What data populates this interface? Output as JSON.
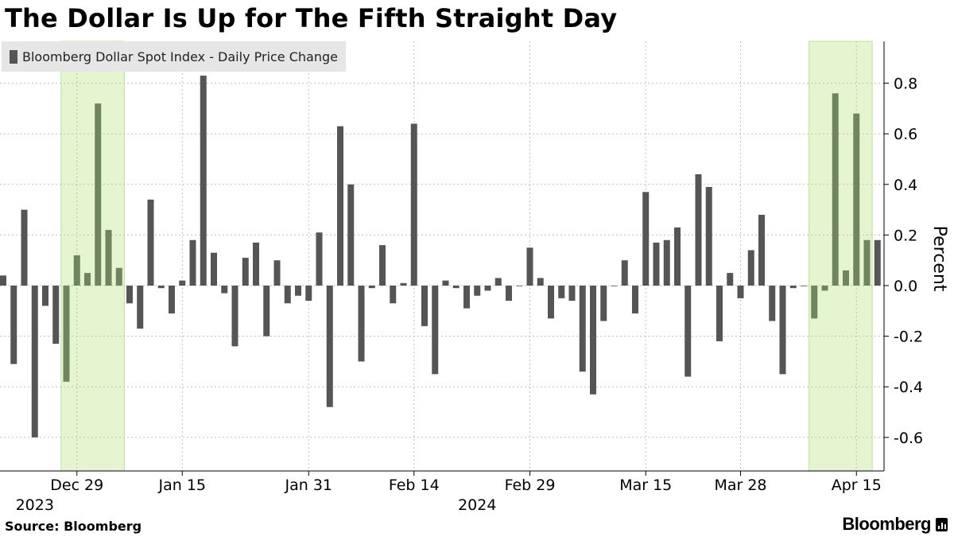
{
  "title": "The Dollar Is Up for The Fifth Straight Day",
  "legend": {
    "label": "Bloomberg Dollar Spot Index - Daily Price Change"
  },
  "source": "Source: Bloomberg",
  "brand": "Bloomberg",
  "colors": {
    "bar": "#555555",
    "highlight_fill": "#e5f5cf",
    "highlight_edge": "#b9e39a",
    "bar_in_highlight": "#6f8560",
    "grid": "#bfbfbf"
  },
  "chart_data": {
    "type": "bar",
    "ylabel": "Percent",
    "ylim": [
      -0.72,
      0.96
    ],
    "yticks": [
      0.8,
      0.6,
      0.4,
      0.2,
      0.0,
      -0.2,
      -0.4,
      -0.6
    ],
    "ytick_labels": [
      "0.8",
      "0.6",
      "0.4",
      "0.2",
      "0.0",
      "-0.2",
      "-0.4",
      "-0.6"
    ],
    "x_tick_labels": [
      {
        "label": "Dec 29",
        "index": 7
      },
      {
        "label": "Jan 15",
        "index": 17
      },
      {
        "label": "Jan 31",
        "index": 29
      },
      {
        "label": "Feb 14",
        "index": 39
      },
      {
        "label": "Feb 29",
        "index": 50
      },
      {
        "label": "Mar 15",
        "index": 61
      },
      {
        "label": "Mar 28",
        "index": 70
      },
      {
        "label": "Apr 15",
        "index": 81
      }
    ],
    "year_labels": [
      {
        "label": "2023",
        "index": 3
      },
      {
        "label": "2024",
        "index": 45
      }
    ],
    "highlights": [
      {
        "start_index": 6,
        "end_index": 11
      },
      {
        "start_index": 77,
        "end_index": 82
      }
    ],
    "grid": true,
    "legend_position": "top-left",
    "values": [
      0.04,
      -0.31,
      0.3,
      -0.6,
      -0.08,
      -0.23,
      -0.38,
      0.12,
      0.05,
      0.72,
      0.22,
      0.07,
      -0.07,
      -0.17,
      0.34,
      -0.01,
      -0.11,
      0.02,
      0.18,
      0.83,
      0.13,
      -0.03,
      -0.24,
      0.11,
      0.17,
      -0.2,
      0.1,
      -0.07,
      -0.04,
      -0.06,
      0.21,
      -0.48,
      0.63,
      0.4,
      -0.3,
      -0.01,
      0.16,
      -0.07,
      0.01,
      0.64,
      -0.16,
      -0.35,
      0.02,
      -0.01,
      -0.09,
      -0.04,
      -0.02,
      0.03,
      -0.06,
      0.0,
      0.15,
      0.03,
      -0.13,
      -0.05,
      -0.06,
      -0.34,
      -0.43,
      -0.14,
      0.0,
      0.1,
      -0.11,
      0.37,
      0.17,
      0.18,
      0.23,
      -0.36,
      0.44,
      0.39,
      -0.22,
      0.05,
      -0.05,
      0.14,
      0.28,
      -0.14,
      -0.35,
      -0.01,
      0.0,
      -0.13,
      -0.02,
      0.76,
      0.06,
      0.68,
      0.18,
      0.18
    ]
  }
}
